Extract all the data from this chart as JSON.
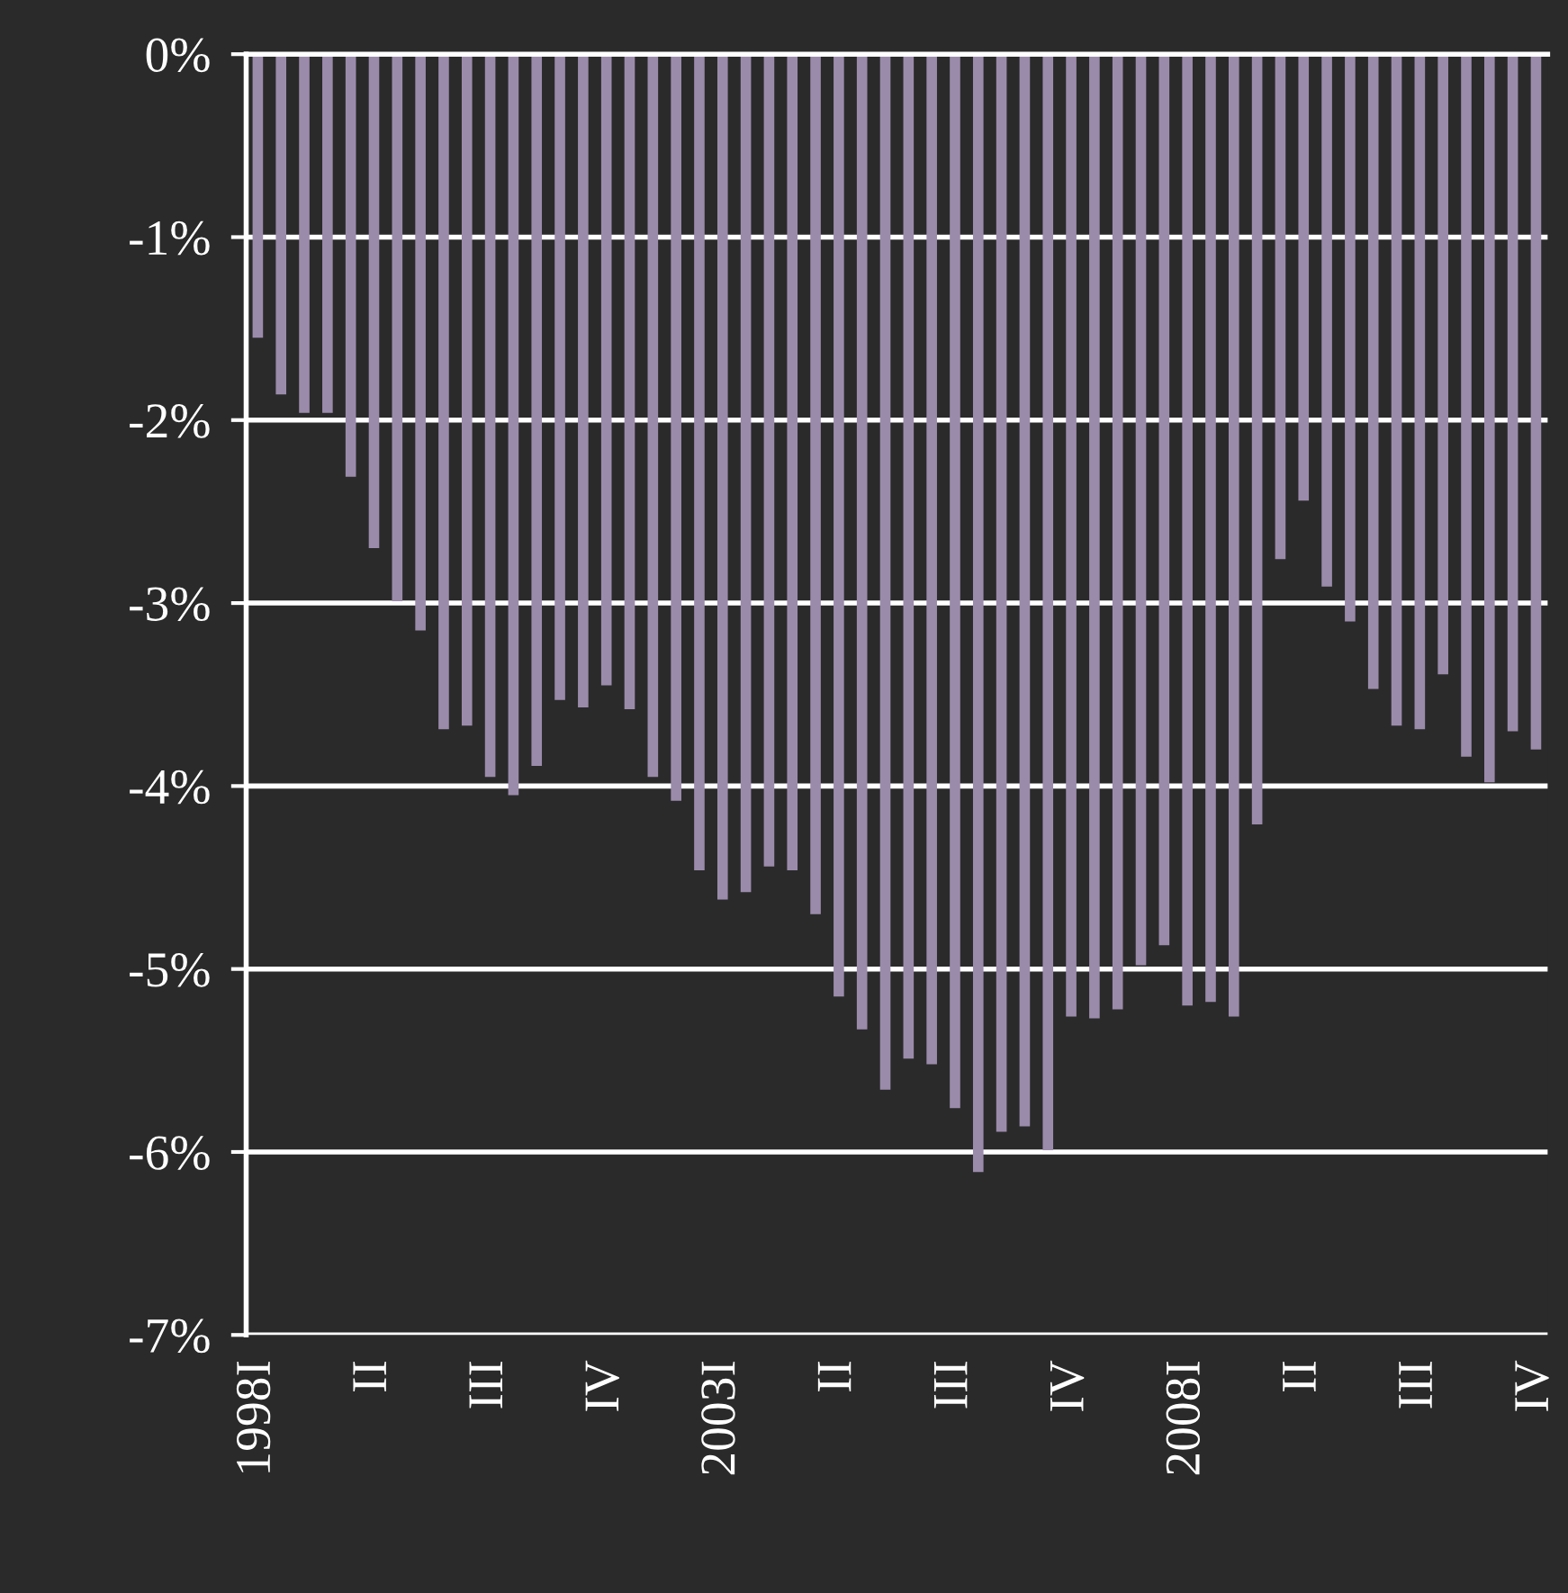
{
  "chart_data": {
    "type": "bar",
    "categories": [
      "1998I",
      null,
      null,
      null,
      null,
      "II",
      null,
      null,
      null,
      null,
      "III",
      null,
      null,
      null,
      null,
      "IV",
      null,
      null,
      null,
      null,
      "2003I",
      null,
      null,
      null,
      null,
      "II",
      null,
      null,
      null,
      null,
      "III",
      null,
      null,
      null,
      null,
      "IV",
      null,
      null,
      null,
      null,
      "2008I",
      null,
      null,
      null,
      null,
      "II",
      null,
      null,
      null,
      null,
      "III",
      null,
      null,
      null,
      null,
      "IV"
    ],
    "values": [
      -1.55,
      -1.86,
      -1.96,
      -1.96,
      -2.31,
      -2.7,
      -2.99,
      -3.15,
      -3.69,
      -3.67,
      -3.95,
      -4.05,
      -3.89,
      -3.53,
      -3.57,
      -3.45,
      -3.58,
      -3.95,
      -4.08,
      -4.46,
      -4.62,
      -4.58,
      -4.44,
      -4.46,
      -4.7,
      -5.15,
      -5.33,
      -5.66,
      -5.49,
      -5.52,
      -5.76,
      -6.11,
      -5.89,
      -5.86,
      -5.99,
      -5.26,
      -5.27,
      -5.22,
      -4.98,
      -4.87,
      -5.2,
      -5.18,
      -5.26,
      -4.21,
      -2.76,
      -2.44,
      -2.91,
      -3.1,
      -3.47,
      -3.67,
      -3.69,
      -3.39,
      -3.84,
      -3.98,
      -3.7,
      -3.8
    ],
    "color": "#9b8bab",
    "ylim": [
      -7,
      0
    ],
    "yticks": [
      {
        "value": 0,
        "label": "0%"
      },
      {
        "value": -1,
        "label": "-1%"
      },
      {
        "value": -2,
        "label": "-2%"
      },
      {
        "value": -3,
        "label": "-3%"
      },
      {
        "value": -4,
        "label": "-4%"
      },
      {
        "value": -5,
        "label": "-5%"
      },
      {
        "value": -6,
        "label": "-6%"
      },
      {
        "value": -7,
        "label": "-7%"
      }
    ],
    "grid": "y",
    "legend": false
  }
}
